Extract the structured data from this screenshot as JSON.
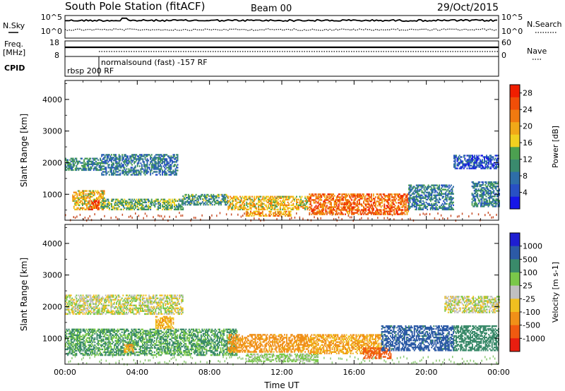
{
  "header": {
    "station": "South Pole Station (fitACF)",
    "beam": "Beam 00",
    "date": "29/Oct/2015"
  },
  "strips": {
    "nsky_label": "N.Sky",
    "nsearch_label": "N.Search",
    "freq_label_1": "Freq.",
    "freq_label_2": "[MHz]",
    "nave_label": "Nave",
    "cpid_label": "CPID",
    "noise_ticks_left": [
      "10^5",
      "10^0"
    ],
    "noise_ticks_right": [
      "10^5",
      "10^0"
    ],
    "freq_ticks": [
      "18",
      "8"
    ],
    "nave_ticks": [
      "60",
      "0"
    ],
    "cpid_modes": [
      {
        "label": "rbsp 200 RF",
        "start_hour": 0.0
      },
      {
        "label": "normalsound (fast) -157 RF",
        "start_hour": 1.95
      }
    ]
  },
  "chart_data": [
    {
      "type": "heatmap",
      "title": "",
      "xlabel": "Time UT",
      "ylabel": "Slant Range [km]",
      "xlim": [
        0,
        24
      ],
      "ylim": [
        180,
        4600
      ],
      "x_ticks": [
        "00:00",
        "04:00",
        "08:00",
        "12:00",
        "16:00",
        "20:00",
        "00:00"
      ],
      "y_ticks": [
        "1000",
        "2000",
        "3000",
        "4000"
      ],
      "colorbar": {
        "label": "Power [dB]",
        "tick_labels": [
          "4",
          "8",
          "12",
          "16",
          "20",
          "24",
          "28"
        ],
        "range": [
          0,
          30
        ],
        "colors": [
          "#1616e8",
          "#2850c4",
          "#2e6ea8",
          "#3a8a6e",
          "#4ca050",
          "#f0d020",
          "#f0a818",
          "#f07a10",
          "#f04e08",
          "#f01e00"
        ]
      },
      "bands": [
        {
          "start": 0.0,
          "end": 2.0,
          "r_low": 1750,
          "r_high": 2150,
          "value": 10
        },
        {
          "start": 0.4,
          "end": 2.2,
          "r_low": 500,
          "r_high": 1100,
          "value": 18
        },
        {
          "start": 1.3,
          "end": 1.9,
          "r_low": 500,
          "r_high": 800,
          "value": 27
        },
        {
          "start": 2.0,
          "end": 6.2,
          "r_low": 1600,
          "r_high": 2250,
          "value": 8
        },
        {
          "start": 2.0,
          "end": 6.5,
          "r_low": 500,
          "r_high": 850,
          "value": 13
        },
        {
          "start": 6.5,
          "end": 9.0,
          "r_low": 650,
          "r_high": 1000,
          "value": 11
        },
        {
          "start": 9.0,
          "end": 13.5,
          "r_low": 500,
          "r_high": 950,
          "value": 18
        },
        {
          "start": 10.0,
          "end": 12.5,
          "r_low": 300,
          "r_high": 480,
          "value": 20
        },
        {
          "start": 13.5,
          "end": 19.0,
          "r_low": 350,
          "r_high": 1000,
          "value": 24
        },
        {
          "start": 19.0,
          "end": 21.5,
          "r_low": 500,
          "r_high": 1300,
          "value": 9
        },
        {
          "start": 21.5,
          "end": 24.0,
          "r_low": 1800,
          "r_high": 2250,
          "value": 5
        },
        {
          "start": 22.5,
          "end": 24.0,
          "r_low": 600,
          "r_high": 1400,
          "value": 9
        }
      ]
    },
    {
      "type": "heatmap",
      "title": "",
      "xlabel": "Time UT",
      "ylabel": "Slant Range [km]",
      "xlim": [
        0,
        24
      ],
      "ylim": [
        180,
        4600
      ],
      "x_ticks": [
        "00:00",
        "04:00",
        "08:00",
        "12:00",
        "16:00",
        "20:00",
        "00:00"
      ],
      "y_ticks": [
        "1000",
        "2000",
        "3000",
        "4000"
      ],
      "colorbar": {
        "label": "Velocity [m s-1]",
        "tick_labels": [
          "1000",
          "500",
          "100",
          "25",
          "-25",
          "-100",
          "-500",
          "-1000"
        ],
        "class_colors": [
          "#1e1ed2",
          "#2c5aa6",
          "#3a8a6a",
          "#7ac84a",
          "#c0c0c0",
          "#f0c020",
          "#f09018",
          "#f05a10",
          "#e81e10"
        ],
        "class_values": [
          1200,
          750,
          300,
          60,
          0,
          -60,
          -300,
          -750,
          -1200
        ]
      },
      "bands": [
        {
          "start": 0.0,
          "end": 6.5,
          "r_low": 1750,
          "r_high": 2350,
          "value": 0
        },
        {
          "start": 0.0,
          "end": 9.5,
          "r_low": 450,
          "r_high": 1300,
          "value": 200
        },
        {
          "start": 3.2,
          "end": 3.8,
          "r_low": 550,
          "r_high": 800,
          "value": -200
        },
        {
          "start": 5.0,
          "end": 6.0,
          "r_low": 1300,
          "r_high": 1700,
          "value": -150
        },
        {
          "start": 9.0,
          "end": 13.5,
          "r_low": 550,
          "r_high": 1100,
          "value": -250
        },
        {
          "start": 10.0,
          "end": 14.0,
          "r_low": 250,
          "r_high": 480,
          "value": 60
        },
        {
          "start": 13.5,
          "end": 17.5,
          "r_low": 500,
          "r_high": 1100,
          "value": -200
        },
        {
          "start": 16.5,
          "end": 18.0,
          "r_low": 350,
          "r_high": 700,
          "value": -700
        },
        {
          "start": 17.5,
          "end": 21.5,
          "r_low": 600,
          "r_high": 1400,
          "value": 600
        },
        {
          "start": 21.0,
          "end": 24.0,
          "r_low": 1800,
          "r_high": 2300,
          "value": 0
        },
        {
          "start": 21.5,
          "end": 24.0,
          "r_low": 600,
          "r_high": 1400,
          "value": 300
        }
      ]
    }
  ]
}
